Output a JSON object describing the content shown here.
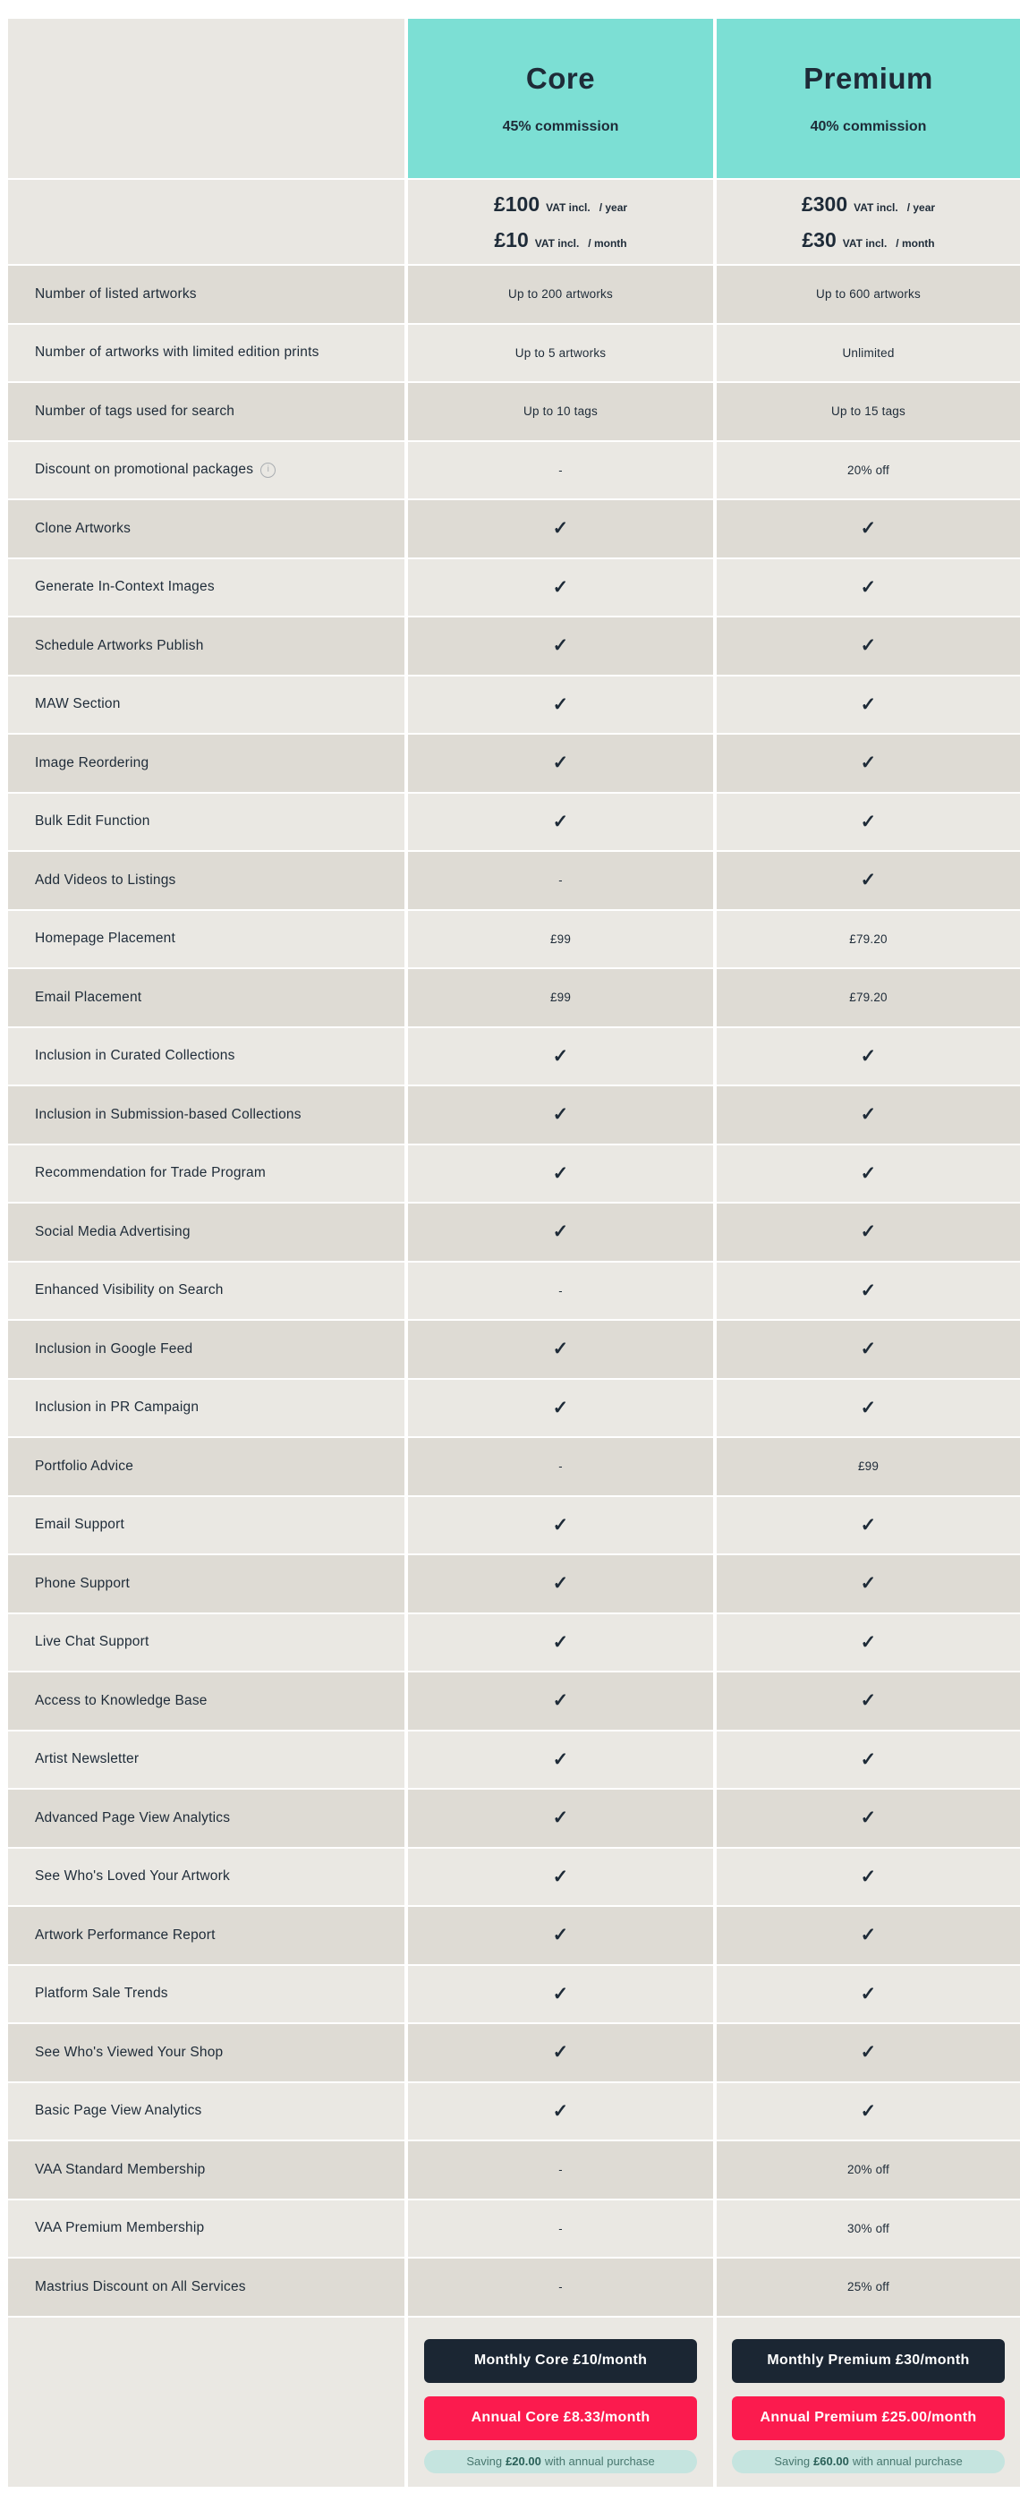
{
  "plans": [
    {
      "name": "Core",
      "commission": "45% commission",
      "price_year": {
        "amount": "£100",
        "note": "VAT incl.",
        "period": "/ year"
      },
      "price_month": {
        "amount": "£10",
        "note": "VAT incl.",
        "period": "/ month"
      },
      "cta": {
        "monthly_label": "Monthly Core £10/month",
        "annual_label": "Annual Core £8.33/month",
        "saving_prefix": "Saving",
        "saving_amount": "£20.00",
        "saving_suffix": "with annual purchase"
      }
    },
    {
      "name": "Premium",
      "commission": "40% commission",
      "price_year": {
        "amount": "£300",
        "note": "VAT incl.",
        "period": "/ year"
      },
      "price_month": {
        "amount": "£30",
        "note": "VAT incl.",
        "period": "/ month"
      },
      "cta": {
        "monthly_label": "Monthly Premium £30/month",
        "annual_label": "Annual Premium £25.00/month",
        "saving_prefix": "Saving",
        "saving_amount": "£60.00",
        "saving_suffix": "with annual purchase"
      }
    }
  ],
  "icons": {
    "info_char": "i"
  },
  "features": [
    {
      "label": "Number of listed artworks",
      "core": "Up to 200 artworks",
      "premium": "Up to 600 artworks"
    },
    {
      "label": "Number of artworks with limited edition prints",
      "core": "Up to 5 artworks",
      "premium": "Unlimited"
    },
    {
      "label": "Number of tags used for search",
      "core": "Up to 10 tags",
      "premium": "Up to 15 tags"
    },
    {
      "label": "Discount on promotional packages",
      "info": true,
      "core": "-",
      "premium": "20% off"
    },
    {
      "label": "Clone Artworks",
      "core": "✓",
      "premium": "✓"
    },
    {
      "label": "Generate In-Context Images",
      "core": "✓",
      "premium": "✓"
    },
    {
      "label": "Schedule Artworks Publish",
      "core": "✓",
      "premium": "✓"
    },
    {
      "label": "MAW Section",
      "core": "✓",
      "premium": "✓"
    },
    {
      "label": "Image Reordering",
      "core": "✓",
      "premium": "✓"
    },
    {
      "label": "Bulk Edit Function",
      "core": "✓",
      "premium": "✓"
    },
    {
      "label": "Add Videos to Listings",
      "core": "-",
      "premium": "✓"
    },
    {
      "label": "Homepage Placement",
      "core": "£99",
      "premium": "£79.20"
    },
    {
      "label": "Email Placement",
      "core": "£99",
      "premium": "£79.20"
    },
    {
      "label": "Inclusion in Curated Collections",
      "core": "✓",
      "premium": "✓"
    },
    {
      "label": "Inclusion in Submission-based Collections",
      "core": "✓",
      "premium": "✓"
    },
    {
      "label": "Recommendation for Trade Program",
      "core": "✓",
      "premium": "✓"
    },
    {
      "label": "Social Media Advertising",
      "core": "✓",
      "premium": "✓"
    },
    {
      "label": "Enhanced Visibility on Search",
      "core": "-",
      "premium": "✓"
    },
    {
      "label": "Inclusion in Google Feed",
      "core": "✓",
      "premium": "✓"
    },
    {
      "label": "Inclusion in PR Campaign",
      "core": "✓",
      "premium": "✓"
    },
    {
      "label": "Portfolio Advice",
      "core": "-",
      "premium": "£99"
    },
    {
      "label": "Email Support",
      "core": "✓",
      "premium": "✓"
    },
    {
      "label": "Phone Support",
      "core": "✓",
      "premium": "✓"
    },
    {
      "label": "Live Chat Support",
      "core": "✓",
      "premium": "✓"
    },
    {
      "label": "Access to Knowledge Base",
      "core": "✓",
      "premium": "✓"
    },
    {
      "label": "Artist Newsletter",
      "core": "✓",
      "premium": "✓"
    },
    {
      "label": "Advanced Page View Analytics",
      "core": "✓",
      "premium": "✓"
    },
    {
      "label": "See Who's Loved Your Artwork",
      "core": "✓",
      "premium": "✓"
    },
    {
      "label": "Artwork Performance Report",
      "core": "✓",
      "premium": "✓"
    },
    {
      "label": "Platform Sale Trends",
      "core": "✓",
      "premium": "✓"
    },
    {
      "label": "See Who's Viewed Your Shop",
      "core": "✓",
      "premium": "✓"
    },
    {
      "label": "Basic Page View Analytics",
      "core": "✓",
      "premium": "✓"
    },
    {
      "label": "VAA Standard Membership",
      "core": "-",
      "premium": "20% off"
    },
    {
      "label": "VAA Premium Membership",
      "core": "-",
      "premium": "30% off"
    },
    {
      "label": "Mastrius Discount on All Services",
      "core": "-",
      "premium": "25% off"
    }
  ],
  "colors": {
    "header_teal": "#7CDFD4",
    "navy_text": "#1E2B38",
    "row_dark": "#DEDBD4",
    "row_light": "#EAE8E3",
    "monthly_button_bg": "#1B2633",
    "annual_button_bg": "#FB1B4E",
    "saving_pill_bg": "#C5E4DF",
    "saving_pill_text": "#48776F"
  }
}
